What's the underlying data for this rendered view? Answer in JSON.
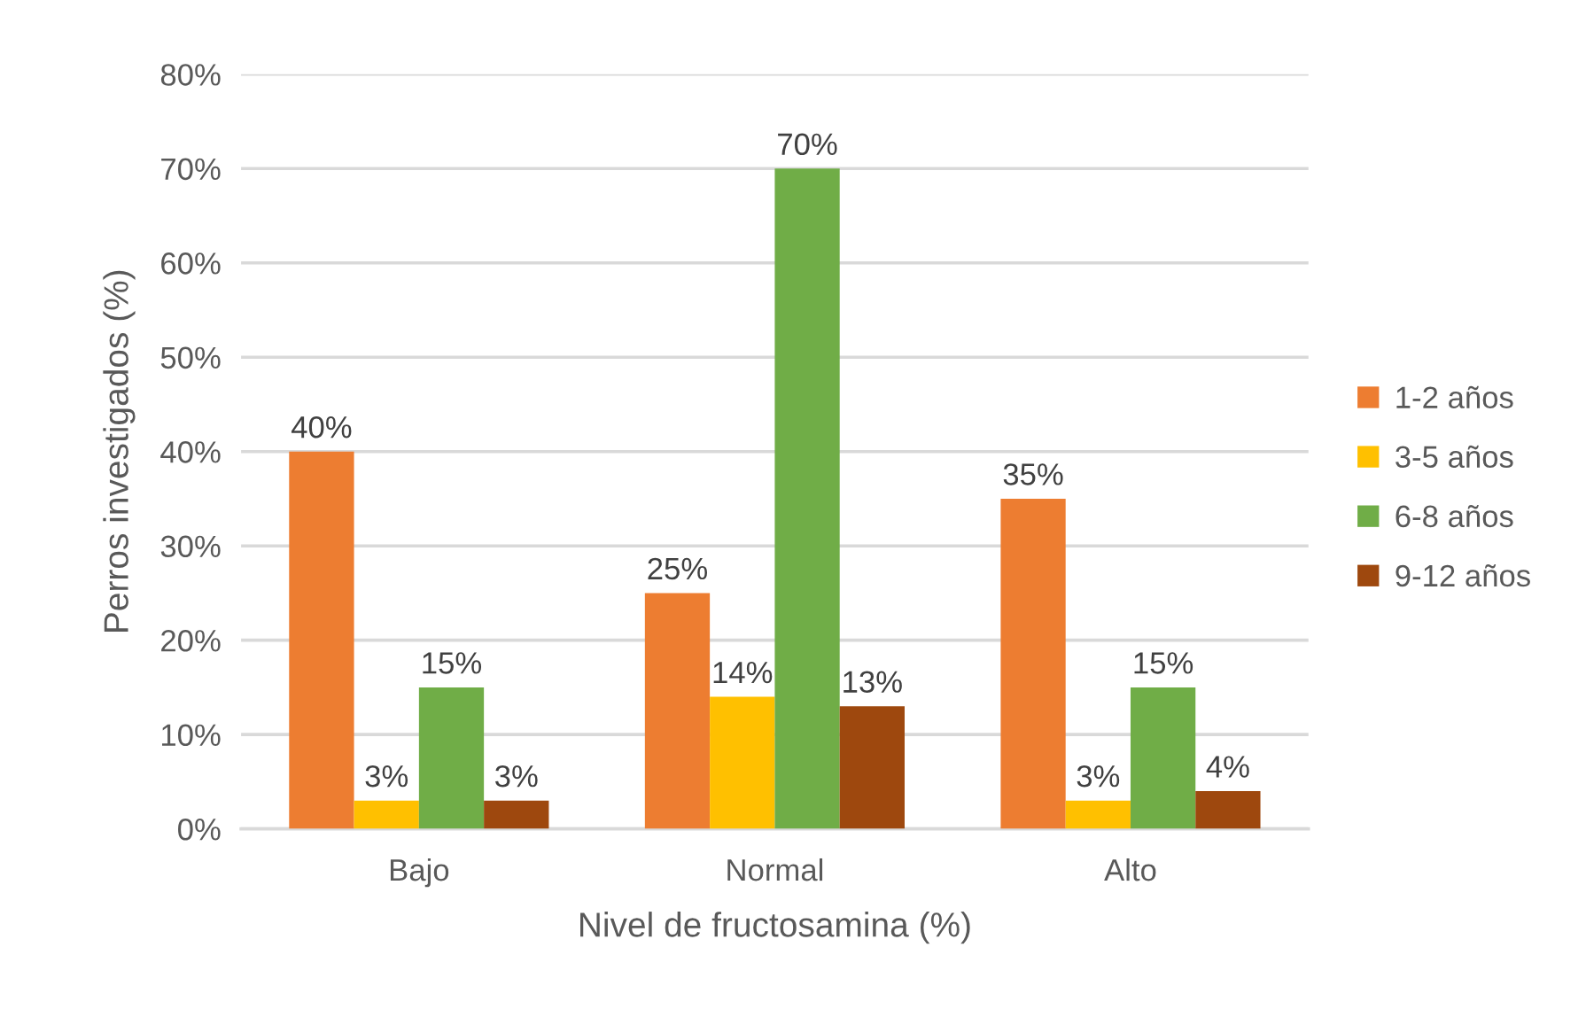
{
  "chart_data": {
    "type": "bar",
    "xlabel": "Nivel de fructosamina (%)",
    "ylabel": "Perros investigados (%)",
    "categories": [
      "Bajo",
      "Normal",
      "Alto"
    ],
    "series": [
      {
        "name": "1-2 años",
        "color": "#ed7d31",
        "values": [
          40,
          25,
          35
        ],
        "value_labels": [
          "40%",
          "25%",
          "35%"
        ]
      },
      {
        "name": "3-5 años",
        "color": "#ffc000",
        "values": [
          3,
          14,
          3
        ],
        "value_labels": [
          "3%",
          "14%",
          "3%"
        ]
      },
      {
        "name": "6-8 años",
        "color": "#70ad47",
        "values": [
          15,
          70,
          15
        ],
        "value_labels": [
          "15%",
          "70%",
          "15%"
        ]
      },
      {
        "name": "9-12 años",
        "color": "#9e480e",
        "values": [
          3,
          13,
          4
        ],
        "value_labels": [
          "3%",
          "13%",
          "4%"
        ]
      }
    ],
    "ylim": [
      0,
      80
    ],
    "yticks": [
      {
        "value": 0,
        "label": "0%"
      },
      {
        "value": 10,
        "label": "10%"
      },
      {
        "value": 20,
        "label": "20%"
      },
      {
        "value": 30,
        "label": "30%"
      },
      {
        "value": 40,
        "label": "40%"
      },
      {
        "value": 50,
        "label": "50%"
      },
      {
        "value": 60,
        "label": "60%"
      },
      {
        "value": 70,
        "label": "70%"
      },
      {
        "value": 80,
        "label": "80%"
      }
    ],
    "grid": "y",
    "legend": "right"
  }
}
